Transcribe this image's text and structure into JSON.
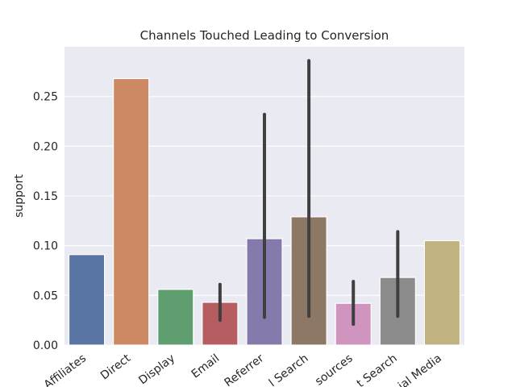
{
  "chart_data": {
    "type": "bar",
    "title": "Channels Touched Leading to Conversion",
    "xlabel": "",
    "ylabel": "support",
    "ylim": [
      0,
      0.3
    ],
    "yticks": [
      "0.00",
      "0.05",
      "0.10",
      "0.15",
      "0.20",
      "0.25"
    ],
    "categories": [
      "Affiliates",
      "Direct",
      "Display",
      "Email",
      "Referrer",
      "l Search",
      "sources",
      "t Search",
      "ial Media"
    ],
    "values": [
      0.091,
      0.268,
      0.056,
      0.043,
      0.107,
      0.129,
      0.042,
      0.068,
      0.105
    ],
    "error_bars": [
      null,
      null,
      null,
      [
        0.025,
        0.061
      ],
      [
        0.028,
        0.232
      ],
      [
        0.029,
        0.286
      ],
      [
        0.021,
        0.064
      ],
      [
        0.029,
        0.114
      ],
      null
    ],
    "colors": [
      "#5875a4",
      "#cc8963",
      "#5f9e6e",
      "#b55d60",
      "#857aab",
      "#8d7866",
      "#d095bf",
      "#8c8c8c",
      "#c1b37f"
    ],
    "background": "#eaeaf2",
    "grid": true
  }
}
